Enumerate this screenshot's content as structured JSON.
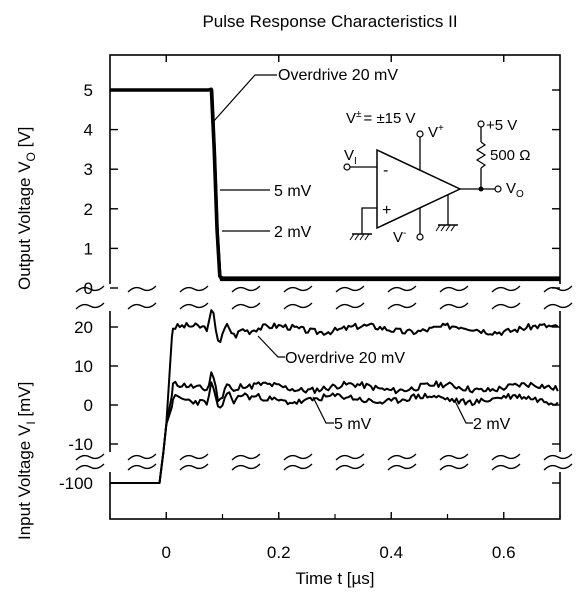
{
  "chart_data": {
    "type": "line",
    "title": "Pulse Response Characteristics II",
    "xlabel": "Time t [µs]",
    "x_ticks": [
      "0",
      "0.2",
      "0.4",
      "0.6"
    ],
    "xlim": [
      -0.1,
      0.7
    ],
    "output_panel": {
      "ylabel_main": "Output Voltage V",
      "ylabel_sub": "O",
      "ylabel_unit": " [V]",
      "ylim": [
        0,
        5.5
      ],
      "y_ticks": [
        "0",
        "1",
        "2",
        "3",
        "4",
        "5"
      ],
      "series": [
        {
          "name": "Overdrive 20 mV",
          "x": [
            -0.1,
            0.075,
            0.08,
            0.085,
            0.09,
            0.095,
            0.1,
            0.7
          ],
          "y": [
            5.0,
            5.0,
            5.02,
            3.5,
            1.5,
            0.3,
            0.25,
            0.25
          ]
        },
        {
          "name": "5 mV",
          "x": [
            -0.1,
            0.076,
            0.081,
            0.086,
            0.091,
            0.096,
            0.101,
            0.7
          ],
          "y": [
            5.0,
            5.0,
            5.0,
            3.5,
            1.5,
            0.25,
            0.22,
            0.22
          ]
        },
        {
          "name": "2 mV",
          "x": [
            -0.1,
            0.077,
            0.082,
            0.087,
            0.092,
            0.097,
            0.102,
            0.7
          ],
          "y": [
            5.0,
            5.0,
            5.0,
            3.4,
            1.4,
            0.2,
            0.2,
            0.2
          ]
        }
      ]
    },
    "input_panel": {
      "ylabel_main": "Input Voltage V",
      "ylabel_sub": "I",
      "ylabel_unit": " [mV]",
      "y_ticks": [
        "20",
        "10",
        "0",
        "-10",
        "-100"
      ],
      "series": [
        {
          "name": "Overdrive 20 mV",
          "x": [
            -0.1,
            -0.02,
            0.0,
            0.01,
            0.7
          ],
          "y": [
            -100,
            -100,
            0,
            18.5,
            19.5
          ]
        },
        {
          "name": "5 mV",
          "x": [
            -0.1,
            -0.02,
            0.0,
            0.01,
            0.7
          ],
          "y": [
            -100,
            -100,
            0,
            4.5,
            4.5
          ]
        },
        {
          "name": "2 mV",
          "x": [
            -0.1,
            -0.02,
            0.0,
            0.01,
            0.7
          ],
          "y": [
            -100,
            -100,
            0,
            1.5,
            1.5
          ]
        }
      ]
    },
    "annotations": [
      "Overdrive 20 mV",
      "5 mV",
      "2 mV",
      "Overdrive 20 mV",
      "5 mV",
      "2 mV"
    ],
    "grid": false
  },
  "circuit": {
    "supply_label": "V",
    "supply_sup": "±",
    "supply_value": "= ±15 V",
    "vplus_label": "V",
    "vplus_sup": "+",
    "vminus_label": "V",
    "vminus_sup": "-",
    "vi_label": "V",
    "vi_sub": "I",
    "vo_label": "V",
    "vo_sub": "O",
    "pullup_voltage": "+5 V",
    "resistor_label": "500 Ω",
    "inv_sign": "-",
    "noninv_sign": "+"
  }
}
